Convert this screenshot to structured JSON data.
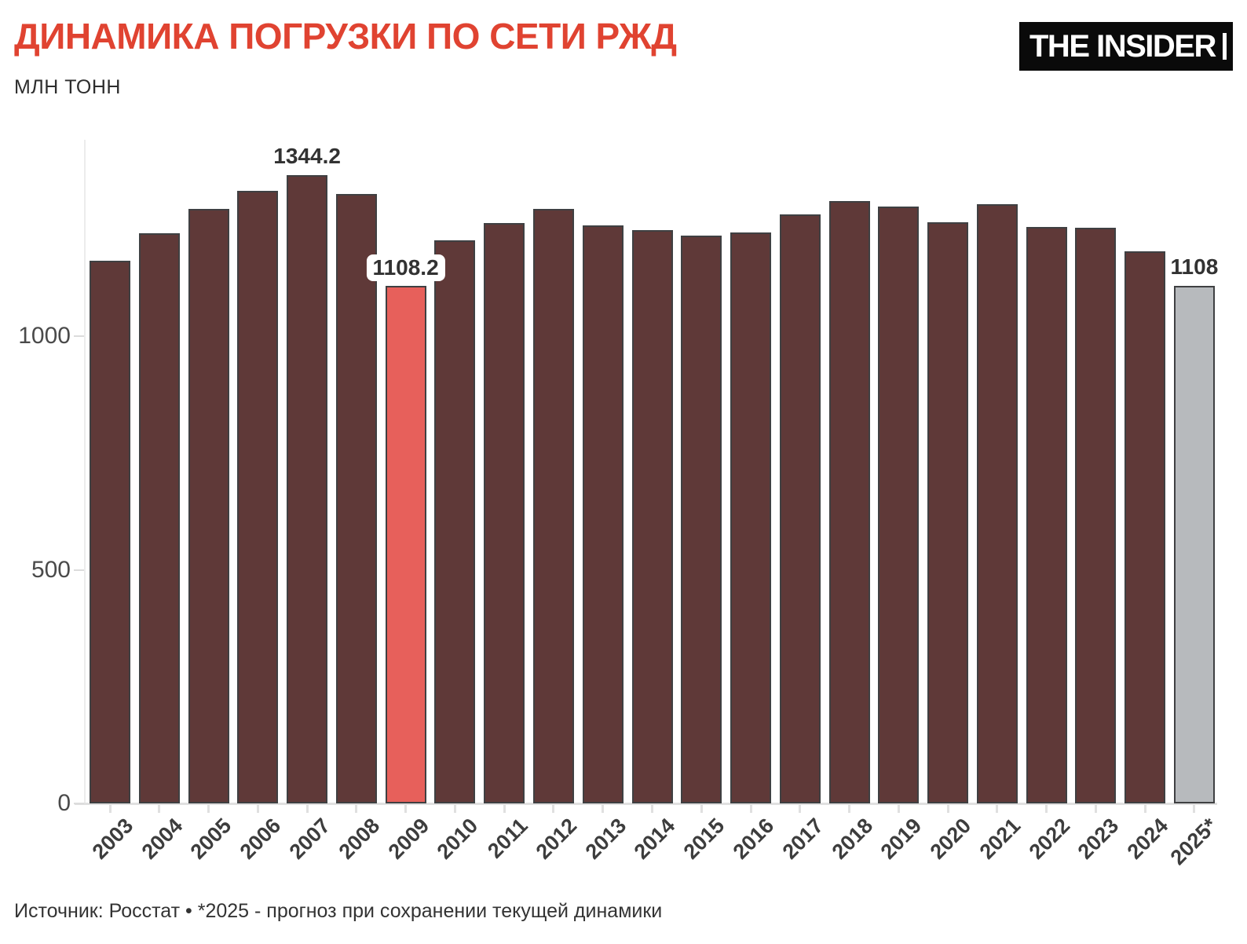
{
  "header": {
    "title": "ДИНАМИКА ПОГРУЗКИ ПО СЕТИ РЖД",
    "subtitle": "МЛН ТОНН"
  },
  "logo": {
    "text": "THE INSIDER"
  },
  "footer": {
    "source": "Источник: Росстат • *2025 - прогноз при сохранении текущей динамики"
  },
  "colors": {
    "title": "#e04331",
    "bar_default": "#5f3938",
    "bar_highlight": "#e7605b",
    "bar_forecast": "#b7babd",
    "bar_border": "#3f4042",
    "axis_line": "#ececec",
    "tick": "#e0e0e0",
    "logo_bg": "#0a0a0a",
    "logo_fg": "#ffffff"
  },
  "chart_data": {
    "type": "bar",
    "title": "ДИНАМИКА ПОГРУЗКИ ПО СЕТИ РЖД",
    "xlabel": "",
    "ylabel": "МЛН ТОНН",
    "ylim": [
      0,
      1400
    ],
    "yticks": [
      0,
      500,
      1000
    ],
    "grid": false,
    "legend_position": "none",
    "categories": [
      "2003",
      "2004",
      "2005",
      "2006",
      "2007",
      "2008",
      "2009",
      "2010",
      "2011",
      "2012",
      "2013",
      "2014",
      "2015",
      "2016",
      "2017",
      "2018",
      "2019",
      "2020",
      "2021",
      "2022",
      "2023",
      "2024",
      "2025*"
    ],
    "values": [
      1161,
      1221,
      1273,
      1311.3,
      1344.2,
      1304,
      1108.2,
      1205,
      1241.5,
      1271.9,
      1236.8,
      1226.9,
      1214.5,
      1222.3,
      1261.3,
      1289.6,
      1278.1,
      1243.6,
      1282.5,
      1234.3,
      1232.2,
      1181.4,
      1108
    ],
    "highlight_category": "2009",
    "forecast_category": "2025*",
    "annotations": [
      {
        "category": "2007",
        "text": "1344.2",
        "halo": false
      },
      {
        "category": "2009",
        "text": "1108.2",
        "halo": true
      },
      {
        "category": "2025*",
        "text": "1108",
        "halo": false
      }
    ]
  }
}
